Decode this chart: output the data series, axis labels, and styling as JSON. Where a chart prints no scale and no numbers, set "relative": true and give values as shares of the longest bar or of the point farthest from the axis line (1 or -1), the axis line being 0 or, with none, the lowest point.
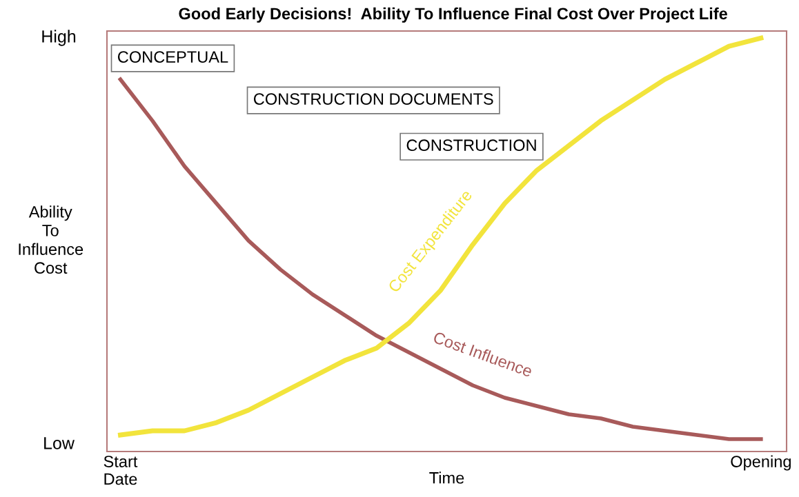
{
  "chart_data": {
    "type": "line",
    "title": "Good Early Decisions!  Ability To Influence Final Cost Over Project Life",
    "xlabel": "Time",
    "ylabel": "Ability\nTo\nInfluence\nCost",
    "relative": true,
    "legend": false,
    "grid": false,
    "marker": "none",
    "line_style": "solid",
    "categories": [
      "Start\nDate",
      null,
      null,
      null,
      null,
      null,
      null,
      null,
      null,
      null,
      null,
      null,
      null,
      null,
      null,
      null,
      null,
      null,
      null,
      null,
      "Opening"
    ],
    "series": [
      {
        "name": "Cost Influence",
        "color": "#a85a5a",
        "values": [
          0.9,
          0.8,
          0.69,
          0.6,
          0.51,
          0.44,
          0.38,
          0.33,
          0.28,
          0.24,
          0.2,
          0.16,
          0.13,
          0.11,
          0.09,
          0.08,
          0.06,
          0.05,
          0.04,
          0.03,
          0.03
        ]
      },
      {
        "name": "Cost Expenditure",
        "color": "#f2e43c",
        "values": [
          0.04,
          0.05,
          0.05,
          0.07,
          0.1,
          0.14,
          0.18,
          0.22,
          0.25,
          0.31,
          0.39,
          0.5,
          0.6,
          0.68,
          0.74,
          0.8,
          0.85,
          0.9,
          0.94,
          0.98,
          1.0
        ]
      }
    ],
    "annotations": [
      "High",
      "Low",
      "CONCEPTUAL",
      "CONSTRUCTION DOCUMENTS",
      "CONSTRUCTION"
    ]
  }
}
